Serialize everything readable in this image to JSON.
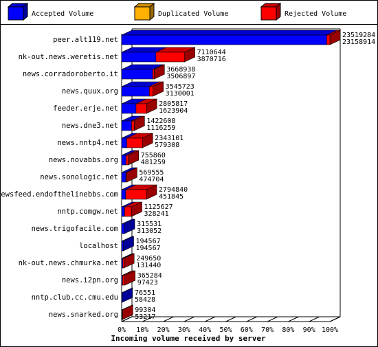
{
  "chart_data": {
    "type": "bar3d",
    "orientation": "horizontal",
    "stacked": true,
    "x_label": "Incoming volume received by server",
    "series": [
      {
        "name": "Accepted Volume",
        "color": "#0000ff",
        "values": [
          23158914,
          3870716,
          3506897,
          3130001,
          1623904,
          1116259,
          579308,
          481259,
          474704,
          451845,
          328241,
          313052,
          194567,
          131440,
          97423,
          58428,
          53217
        ]
      },
      {
        "name": "Duplicated Volume",
        "color": "#ffb000"
      },
      {
        "name": "Rejected Volume",
        "color": "#ff0000"
      }
    ],
    "categories": [
      "peer.alt119.net",
      "nk-out.news.weretis.net",
      "news.corradoroberto.it",
      "news.quux.org",
      "feeder.erje.net",
      "news.dne3.net",
      "news.nntp4.net",
      "news.novabbs.org",
      "news.sonologic.net",
      "newsfeed.endofthelinebbs.com",
      "nntp.comgw.net",
      "news.trigofacile.com",
      "localhost",
      "nk-out.news.chmurka.net",
      "news.i2pn.org",
      "nntp.club.cc.cmu.edu",
      "news.snarked.org"
    ],
    "totals": [
      23519284,
      7110644,
      3668938,
      3545723,
      2805817,
      1422608,
      2343101,
      755860,
      569555,
      2794840,
      1125627,
      315531,
      194567,
      249650,
      365284,
      76551,
      99304
    ],
    "xlim": [
      0,
      100
    ],
    "xticks": [
      {
        "value": 0,
        "label": "0%"
      },
      {
        "value": 10,
        "label": "10%"
      },
      {
        "value": 20,
        "label": "20%"
      },
      {
        "value": 30,
        "label": "30%"
      },
      {
        "value": 40,
        "label": "40%"
      },
      {
        "value": 50,
        "label": "50%"
      },
      {
        "value": 60,
        "label": "60%"
      },
      {
        "value": 70,
        "label": "70%"
      },
      {
        "value": 80,
        "label": "80%"
      },
      {
        "value": 90,
        "label": "90%"
      },
      {
        "value": 100,
        "label": "100%"
      }
    ]
  }
}
